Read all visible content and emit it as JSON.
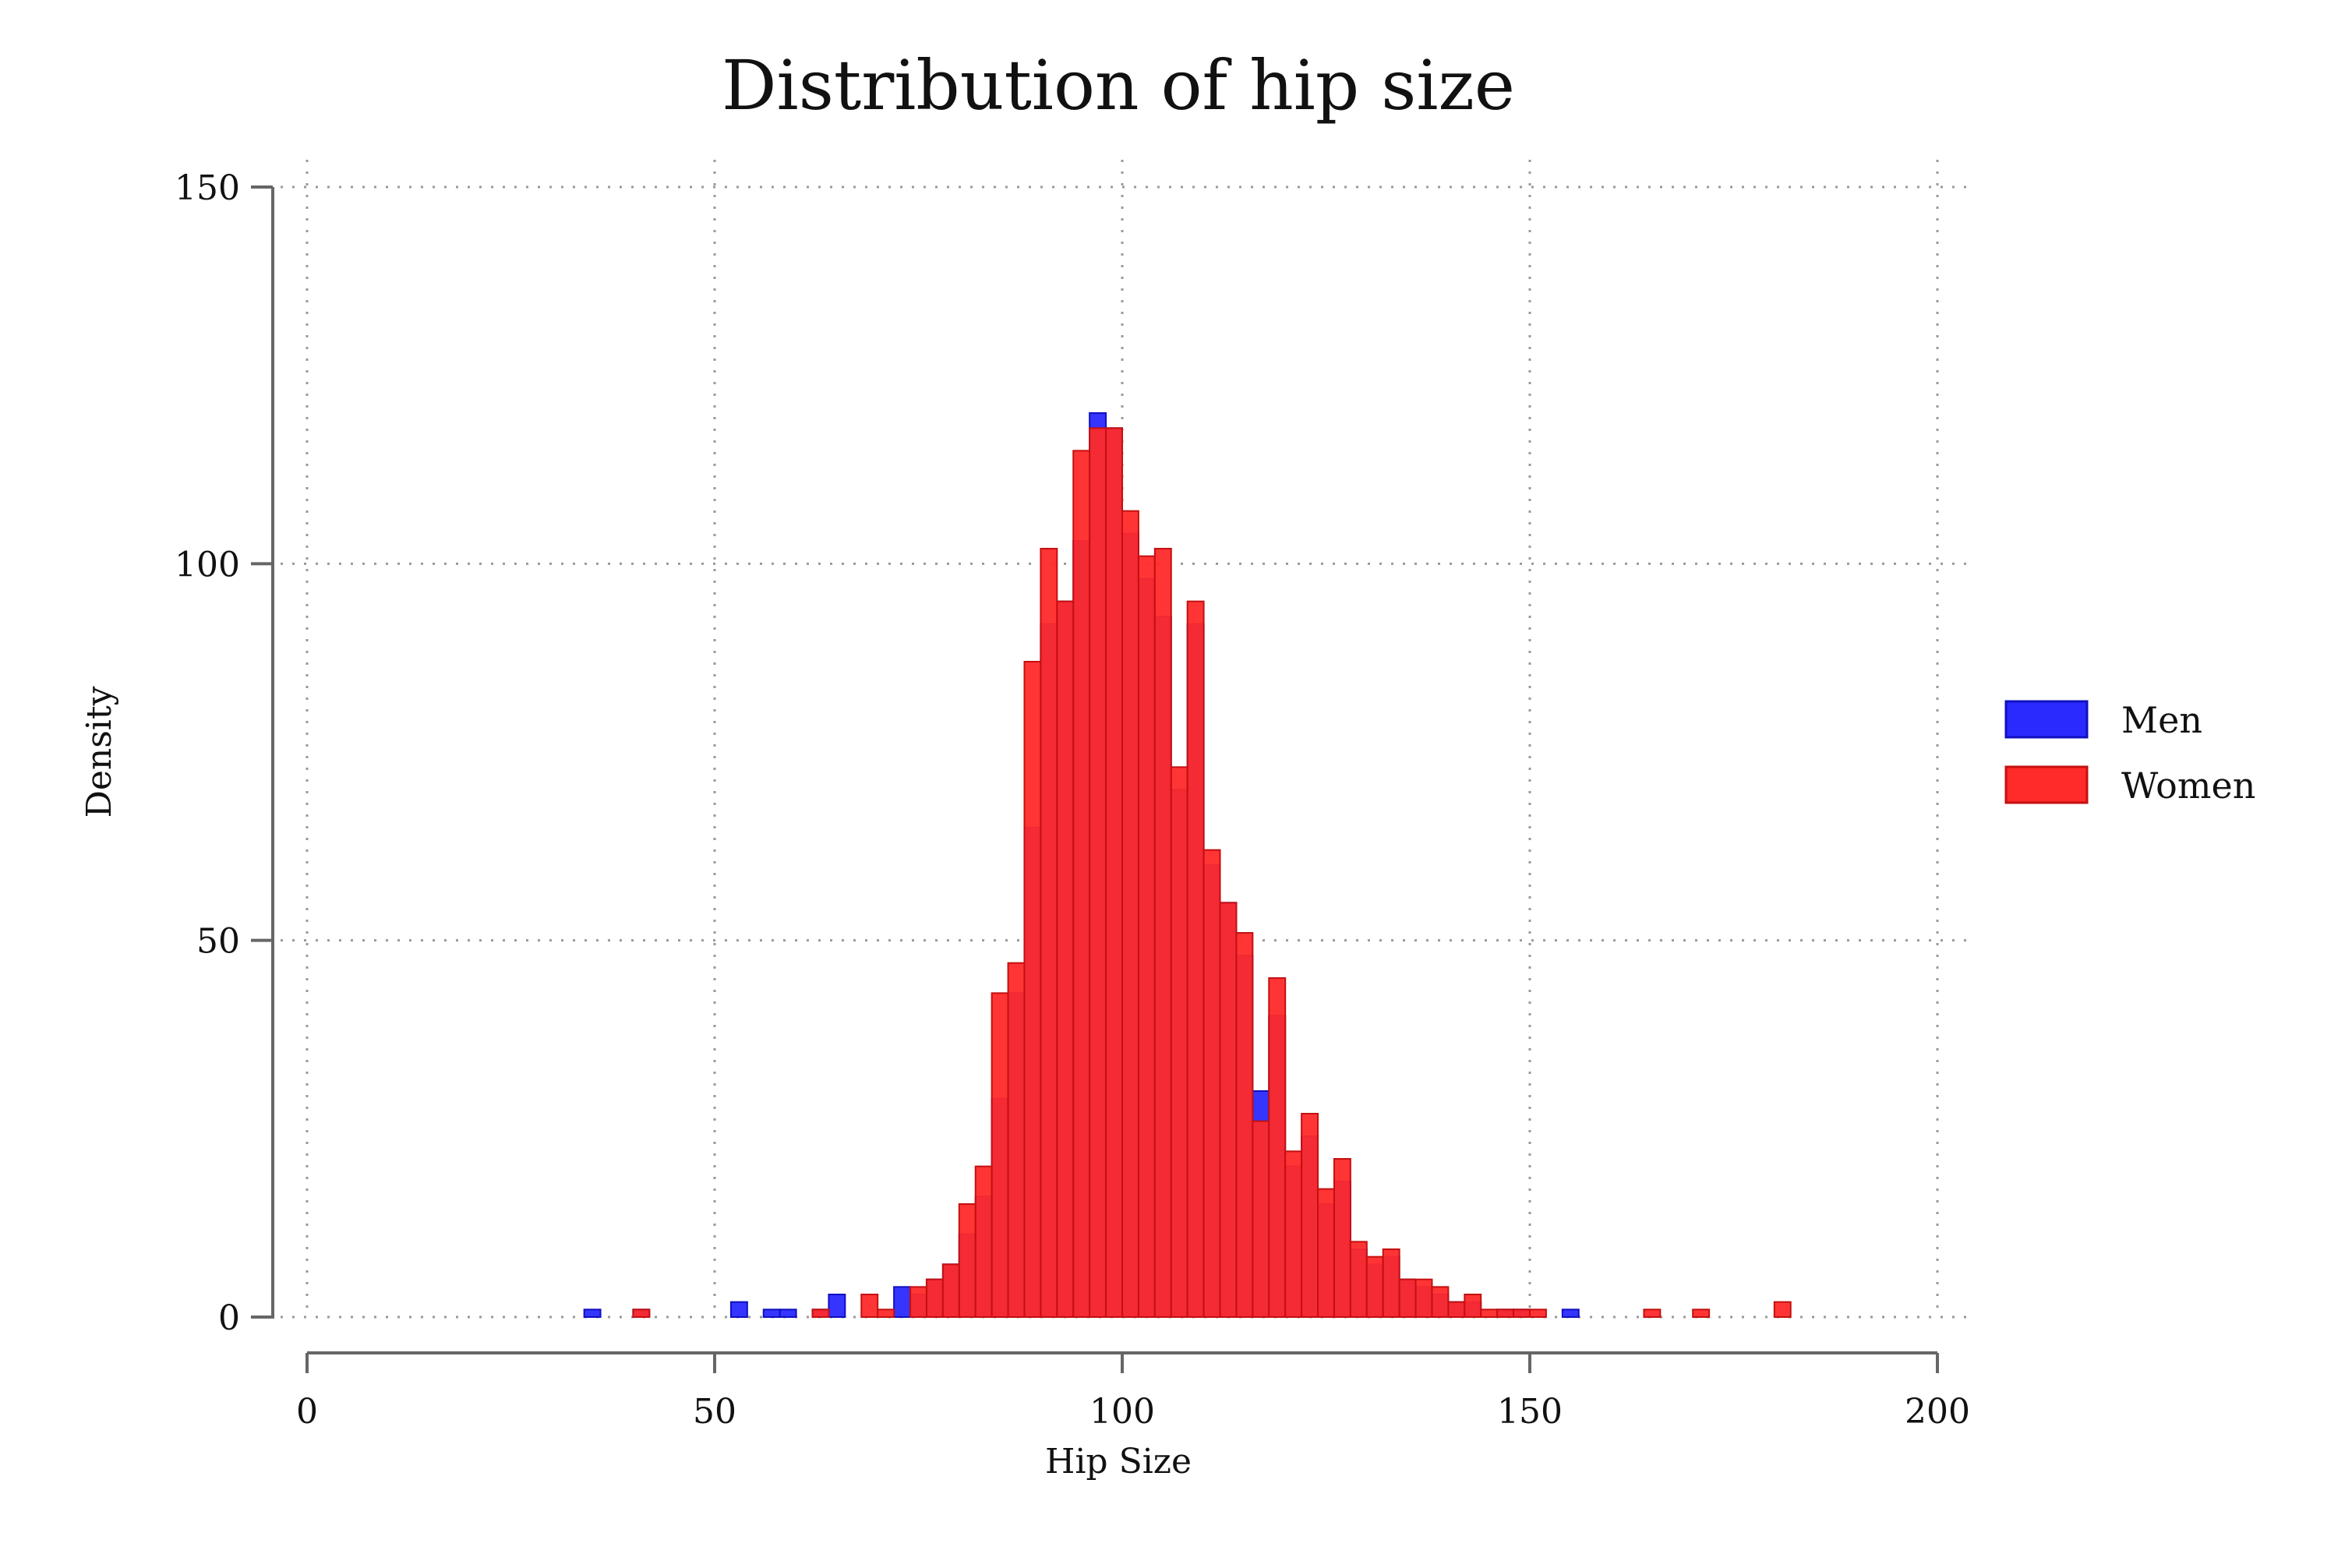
{
  "chart_data": {
    "type": "bar",
    "title": "Distribution of hip size",
    "xlabel": "Hip Size",
    "ylabel": "Density",
    "xlim": [
      0,
      200
    ],
    "ylim": [
      0,
      150
    ],
    "xticks": [
      "0",
      "50",
      "100",
      "150",
      "200"
    ],
    "yticks": [
      "0",
      "50",
      "100",
      "150"
    ],
    "bin_width": 2,
    "grid": true,
    "legend_position": "right",
    "series": [
      {
        "name": "Men",
        "color": "#2a2aff",
        "bins": [
          {
            "x": 34,
            "value": 1
          },
          {
            "x": 40,
            "value": 1
          },
          {
            "x": 52,
            "value": 2
          },
          {
            "x": 56,
            "value": 1
          },
          {
            "x": 58,
            "value": 1
          },
          {
            "x": 62,
            "value": 1
          },
          {
            "x": 64,
            "value": 3
          },
          {
            "x": 72,
            "value": 4
          },
          {
            "x": 74,
            "value": 3
          },
          {
            "x": 76,
            "value": 5
          },
          {
            "x": 78,
            "value": 7
          },
          {
            "x": 80,
            "value": 11
          },
          {
            "x": 82,
            "value": 16
          },
          {
            "x": 84,
            "value": 29
          },
          {
            "x": 86,
            "value": 43
          },
          {
            "x": 88,
            "value": 65
          },
          {
            "x": 90,
            "value": 92
          },
          {
            "x": 92,
            "value": 95
          },
          {
            "x": 94,
            "value": 103
          },
          {
            "x": 96,
            "value": 120
          },
          {
            "x": 98,
            "value": 118
          },
          {
            "x": 100,
            "value": 104
          },
          {
            "x": 102,
            "value": 98
          },
          {
            "x": 104,
            "value": 93
          },
          {
            "x": 106,
            "value": 70
          },
          {
            "x": 108,
            "value": 92
          },
          {
            "x": 110,
            "value": 60
          },
          {
            "x": 112,
            "value": 55
          },
          {
            "x": 114,
            "value": 48
          },
          {
            "x": 116,
            "value": 30
          },
          {
            "x": 118,
            "value": 40
          },
          {
            "x": 120,
            "value": 20
          },
          {
            "x": 122,
            "value": 24
          },
          {
            "x": 124,
            "value": 15
          },
          {
            "x": 126,
            "value": 18
          },
          {
            "x": 128,
            "value": 9
          },
          {
            "x": 130,
            "value": 7
          },
          {
            "x": 132,
            "value": 8
          },
          {
            "x": 134,
            "value": 5
          },
          {
            "x": 136,
            "value": 4
          },
          {
            "x": 138,
            "value": 3
          },
          {
            "x": 140,
            "value": 2
          },
          {
            "x": 142,
            "value": 2
          },
          {
            "x": 146,
            "value": 1
          },
          {
            "x": 148,
            "value": 1
          },
          {
            "x": 154,
            "value": 1
          }
        ]
      },
      {
        "name": "Women",
        "color": "#ff2a2a",
        "bins": [
          {
            "x": 40,
            "value": 1
          },
          {
            "x": 62,
            "value": 1
          },
          {
            "x": 68,
            "value": 3
          },
          {
            "x": 70,
            "value": 1
          },
          {
            "x": 74,
            "value": 4
          },
          {
            "x": 76,
            "value": 5
          },
          {
            "x": 78,
            "value": 7
          },
          {
            "x": 80,
            "value": 15
          },
          {
            "x": 82,
            "value": 20
          },
          {
            "x": 84,
            "value": 43
          },
          {
            "x": 86,
            "value": 47
          },
          {
            "x": 88,
            "value": 87
          },
          {
            "x": 90,
            "value": 102
          },
          {
            "x": 92,
            "value": 95
          },
          {
            "x": 94,
            "value": 115
          },
          {
            "x": 96,
            "value": 118
          },
          {
            "x": 98,
            "value": 118
          },
          {
            "x": 100,
            "value": 107
          },
          {
            "x": 102,
            "value": 101
          },
          {
            "x": 104,
            "value": 102
          },
          {
            "x": 106,
            "value": 73
          },
          {
            "x": 108,
            "value": 95
          },
          {
            "x": 110,
            "value": 62
          },
          {
            "x": 112,
            "value": 55
          },
          {
            "x": 114,
            "value": 51
          },
          {
            "x": 116,
            "value": 26
          },
          {
            "x": 118,
            "value": 45
          },
          {
            "x": 120,
            "value": 22
          },
          {
            "x": 122,
            "value": 27
          },
          {
            "x": 124,
            "value": 17
          },
          {
            "x": 126,
            "value": 21
          },
          {
            "x": 128,
            "value": 10
          },
          {
            "x": 130,
            "value": 8
          },
          {
            "x": 132,
            "value": 9
          },
          {
            "x": 134,
            "value": 5
          },
          {
            "x": 136,
            "value": 5
          },
          {
            "x": 138,
            "value": 4
          },
          {
            "x": 140,
            "value": 2
          },
          {
            "x": 142,
            "value": 3
          },
          {
            "x": 144,
            "value": 1
          },
          {
            "x": 146,
            "value": 1
          },
          {
            "x": 148,
            "value": 1
          },
          {
            "x": 150,
            "value": 1
          },
          {
            "x": 164,
            "value": 1
          },
          {
            "x": 170,
            "value": 1
          },
          {
            "x": 180,
            "value": 2
          }
        ]
      }
    ]
  }
}
